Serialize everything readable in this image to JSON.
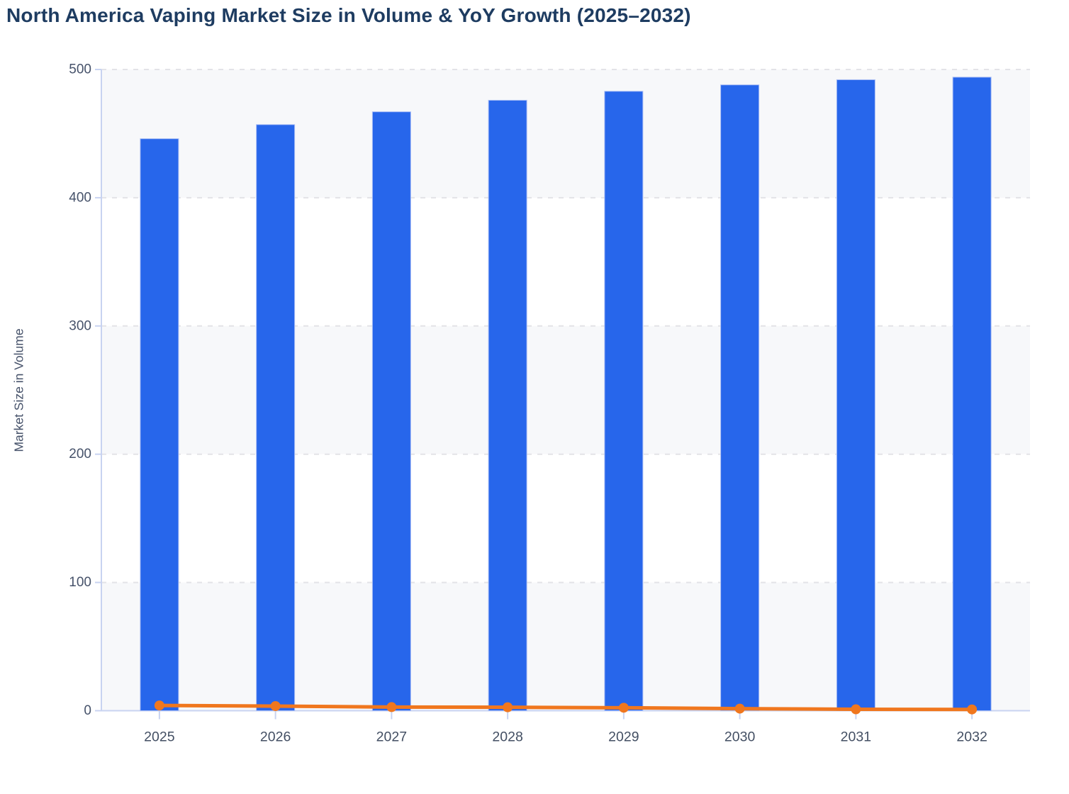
{
  "page": {
    "background": "#ffffff"
  },
  "chart_data": {
    "type": "bar+line",
    "title": "North America Vaping Market Size in Volume & YoY Growth (2025–2032)",
    "ylabel": "Market Size in Volume",
    "xlabel": "",
    "categories": [
      "2025",
      "2026",
      "2027",
      "2028",
      "2029",
      "2030",
      "2031",
      "2032"
    ],
    "series": [
      {
        "name": "Market Size in Volume",
        "type": "bar",
        "color": "#2766EB",
        "values": [
          446,
          457,
          467,
          476,
          483,
          488,
          492,
          494
        ]
      },
      {
        "name": "YoY Growth",
        "type": "line",
        "color": "#F0771E",
        "values": [
          4.1,
          3.6,
          2.8,
          2.7,
          2.3,
          1.6,
          1.1,
          1.0
        ]
      }
    ],
    "ylim": [
      0,
      500
    ],
    "yticks": [
      0,
      100,
      200,
      300,
      400,
      500
    ],
    "grid": "horizontal-dashed",
    "legend_position": "none",
    "colors": {
      "bar": "#2766EB",
      "bar_stroke": "#A9BDF5",
      "line": "#F0771E",
      "title": "#1E3C61",
      "tick_label": "#46526A",
      "axis_line": "#C8D3F1",
      "gridline": "#E3E3E7",
      "band": "#F7F8FA"
    }
  }
}
